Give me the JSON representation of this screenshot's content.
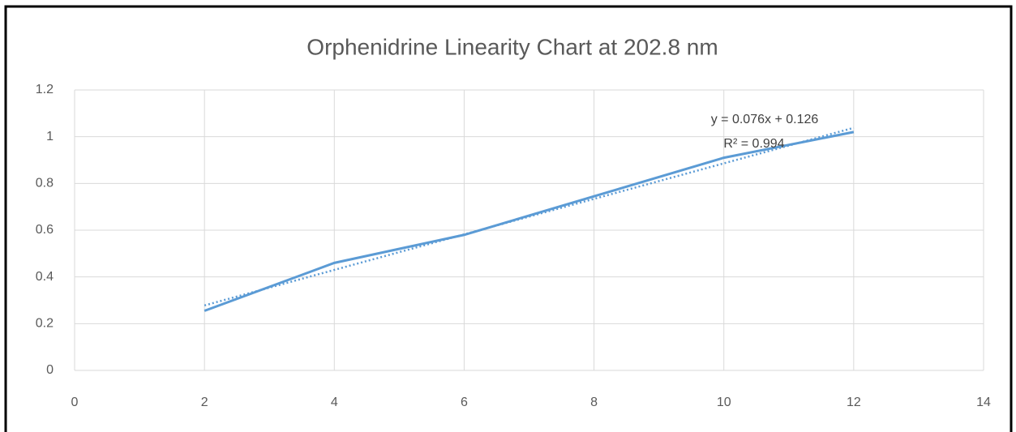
{
  "chart_data": {
    "type": "line",
    "title": "Orphenidrine Linearity Chart at 202.8 nm",
    "series": [
      {
        "x": [
          2,
          4,
          6,
          8,
          10,
          12
        ],
        "values": [
          0.255,
          0.46,
          0.58,
          0.745,
          0.91,
          1.02
        ],
        "color": "#5b9bd5",
        "dashed": false
      },
      {
        "x": [
          2,
          12
        ],
        "values": [
          0.278,
          1.038
        ],
        "color": "#5b9bd5",
        "dashed": true
      }
    ],
    "annotations": [
      "y = 0.076x + 0.126",
      "R² = 0.994"
    ],
    "xlim": [
      0,
      14
    ],
    "xticks": [
      0,
      2,
      4,
      6,
      8,
      10,
      12,
      14
    ],
    "ylim": [
      0,
      1.2
    ],
    "yticks": [
      0,
      0.2,
      0.4,
      0.6,
      0.8,
      1,
      1.2
    ],
    "grid": true
  }
}
